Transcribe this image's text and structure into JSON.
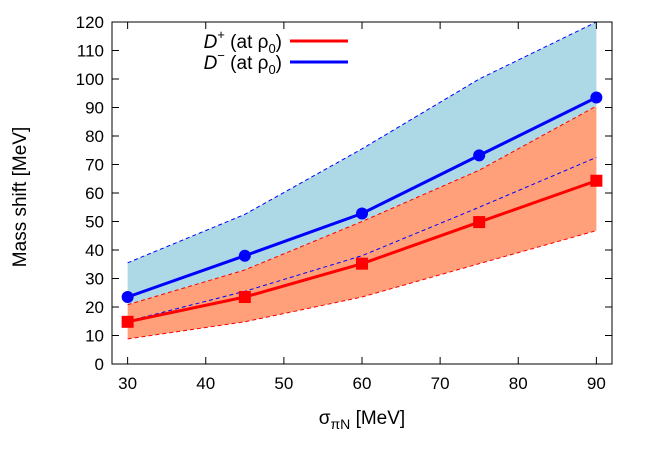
{
  "chart_data": {
    "type": "line",
    "xlabel": "σ",
    "xlabel_sub": "πN",
    "xlabel_unit": " [MeV]",
    "ylabel": "Mass shift [MeV]",
    "xlim": [
      28,
      92
    ],
    "ylim": [
      0,
      120
    ],
    "xticks": [
      30,
      40,
      50,
      60,
      70,
      80,
      90
    ],
    "yticks": [
      0,
      10,
      20,
      30,
      40,
      50,
      60,
      70,
      80,
      90,
      100,
      110,
      120
    ],
    "grid": false,
    "legend_position": "top-left",
    "x": [
      30,
      45,
      60,
      75,
      90
    ],
    "series": [
      {
        "name": "D+ (at ρ0)",
        "legend_sym": "D",
        "legend_sup": "+",
        "legend_mid": " (at ρ",
        "legend_sub": "0",
        "legend_end": ")",
        "color": "#ff0000",
        "band_color": "#ffa07a",
        "marker": "square",
        "values": [
          14.8,
          23.5,
          35.2,
          49.8,
          64.3
        ],
        "band_lower": [
          8.8,
          14.8,
          23.5,
          35.2,
          46.8
        ],
        "band_upper": [
          20.8,
          33.0,
          50.0,
          68.0,
          90.5
        ],
        "dashed_mid": [
          15.0,
          25.5,
          38.0,
          55.0,
          72.5
        ]
      },
      {
        "name": "D- (at ρ0)",
        "legend_sym": "D",
        "legend_sup": "−",
        "legend_mid": " (at ρ",
        "legend_sub": "0",
        "legend_end": ")",
        "color": "#0000ff",
        "band_color": "#add8e6",
        "marker": "circle",
        "values": [
          23.5,
          38.0,
          52.8,
          73.2,
          93.5
        ],
        "band_lower": [
          20.8,
          33.0,
          50.0,
          68.0,
          90.5
        ],
        "band_upper": [
          35.5,
          52.5,
          75.5,
          100.0,
          120.0
        ]
      }
    ]
  }
}
